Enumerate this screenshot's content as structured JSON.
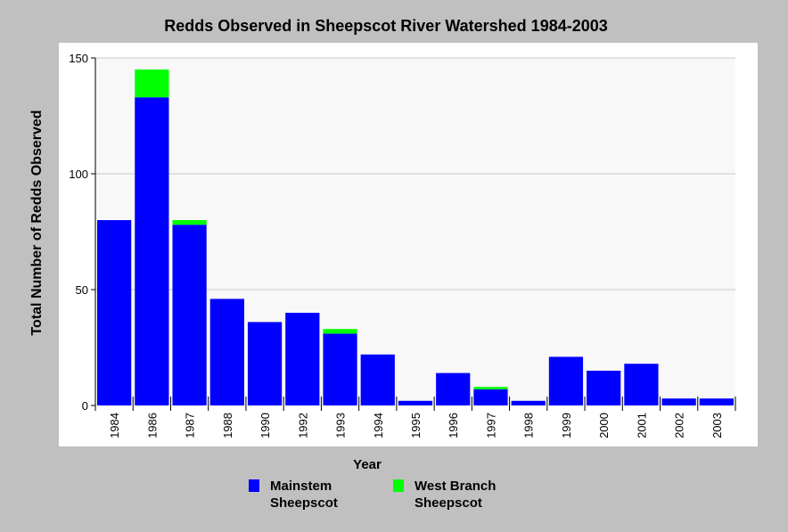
{
  "chart_data": {
    "type": "bar",
    "stacked": true,
    "title": "Redds Observed in Sheepscot River Watershed 1984-2003",
    "xlabel": "Year",
    "ylabel": "Total Number of Redds Observed",
    "ylim": [
      0,
      150
    ],
    "yticks": [
      "0",
      "50",
      "100",
      "150"
    ],
    "grid": true,
    "legend_position": "bottom",
    "categories": [
      "1984",
      "1986",
      "1987",
      "1988",
      "1990",
      "1992",
      "1993",
      "1994",
      "1995",
      "1996",
      "1997",
      "1998",
      "1999",
      "2000",
      "2001",
      "2002",
      "2003"
    ],
    "series": [
      {
        "name": "Mainstem Sheepscot",
        "color": "#0000ff",
        "values": [
          80,
          133,
          78,
          46,
          36,
          40,
          31,
          22,
          2,
          14,
          7,
          2,
          21,
          15,
          18,
          3,
          3
        ]
      },
      {
        "name": "West Branch Sheepscot",
        "color": "#00ff00",
        "values": [
          0,
          12,
          2,
          0,
          0,
          0,
          2,
          0,
          0,
          0,
          1,
          0,
          0,
          0,
          0,
          0,
          0
        ]
      }
    ]
  }
}
